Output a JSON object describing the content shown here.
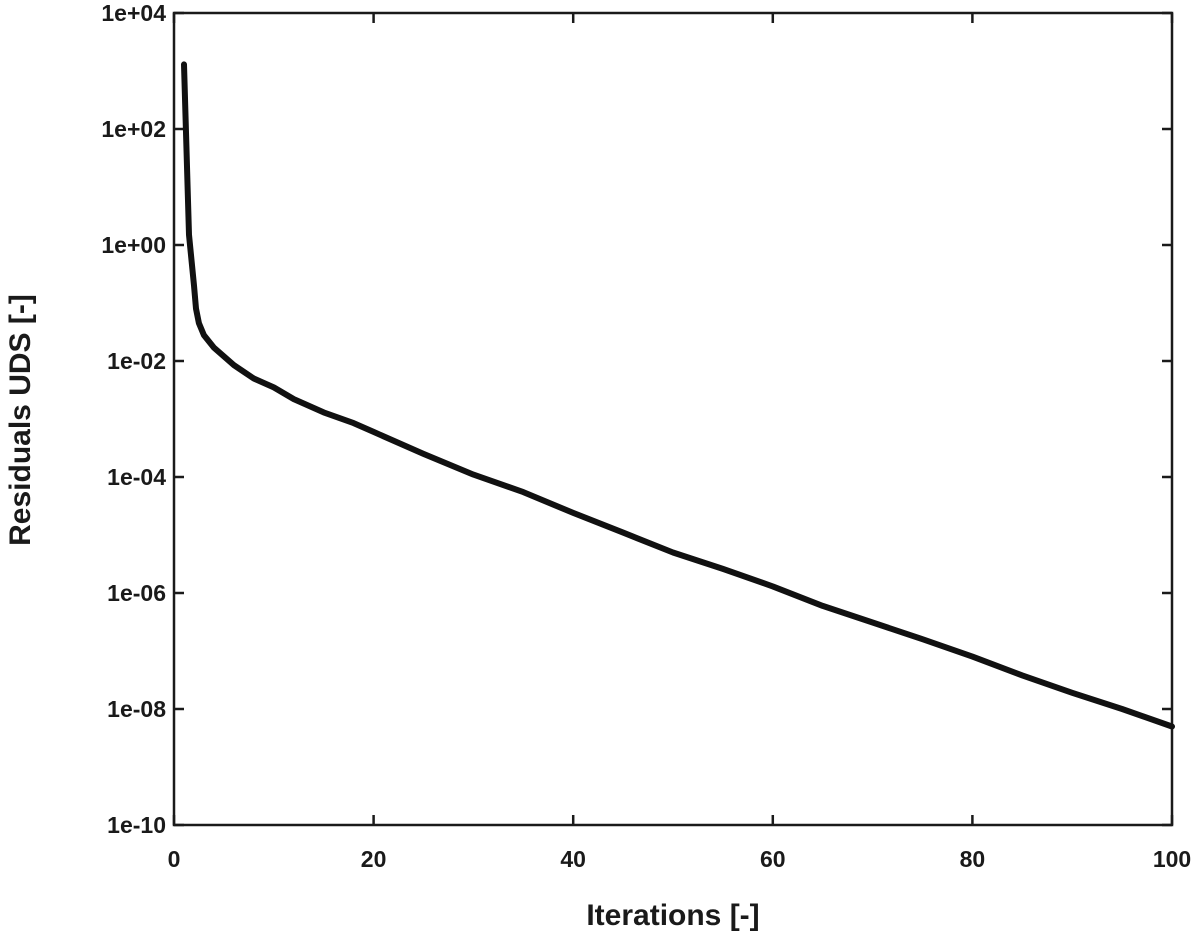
{
  "chart_data": {
    "type": "line",
    "title": "",
    "xlabel": "Iterations [-]",
    "ylabel": "Residuals UDS [-]",
    "xlim": [
      0,
      100
    ],
    "ylim": [
      1e-10,
      10000.0
    ],
    "yscale": "log",
    "grid": false,
    "legend": "none",
    "x_ticks": [
      0,
      20,
      40,
      60,
      80,
      100
    ],
    "x_tick_labels": [
      "0",
      "20",
      "40",
      "60",
      "80",
      "100"
    ],
    "y_ticks": [
      10000.0,
      100.0,
      1,
      0.01,
      0.0001,
      1e-06,
      1e-08,
      1e-10
    ],
    "y_tick_labels": [
      "1e+04",
      "1e+02",
      "1e+00",
      "1e-02",
      "1e-04",
      "1e-06",
      "1e-08",
      "1e-10"
    ],
    "series": [
      {
        "color": "#111111",
        "x": [
          1,
          1.5,
          2,
          2.2,
          2.5,
          3,
          4,
          5,
          6,
          7,
          8,
          10,
          12,
          15,
          18,
          20,
          25,
          30,
          35,
          40,
          45,
          50,
          55,
          60,
          65,
          70,
          75,
          80,
          85,
          90,
          95,
          100
        ],
        "y": [
          1300,
          1.5,
          0.2,
          0.08,
          0.045,
          0.028,
          0.017,
          0.012,
          0.0085,
          0.0065,
          0.005,
          0.0035,
          0.0022,
          0.0013,
          0.00085,
          0.0006,
          0.00025,
          0.00011,
          5.5e-05,
          2.4e-05,
          1.1e-05,
          5e-06,
          2.6e-06,
          1.3e-06,
          6e-07,
          3.1e-07,
          1.6e-07,
          8e-08,
          3.8e-08,
          1.9e-08,
          1e-08,
          5e-09
        ]
      }
    ]
  }
}
